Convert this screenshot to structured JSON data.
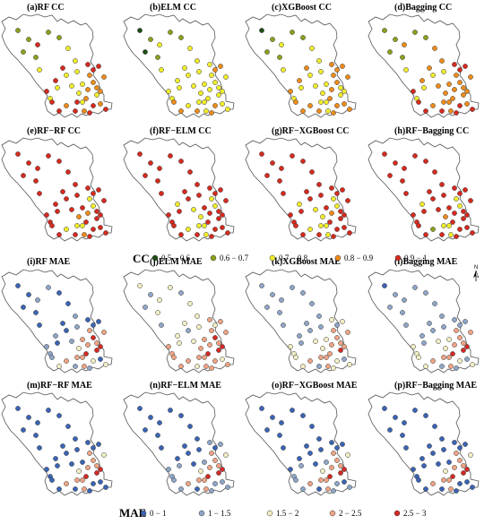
{
  "panels": [
    {
      "title": "(a)RF CC",
      "legend": "cc",
      "dots": [
        1,
        1,
        1,
        1,
        2,
        1,
        1,
        2,
        2,
        2,
        2,
        2,
        2,
        2,
        2,
        3,
        3,
        3,
        2,
        3,
        2,
        2,
        3,
        4,
        4,
        3,
        4,
        4,
        3,
        4,
        3,
        4,
        4,
        4,
        4,
        4,
        4,
        4,
        3,
        4,
        3,
        4
      ]
    },
    {
      "title": "(b)ELM CC",
      "legend": "cc",
      "dots": [
        0,
        1,
        0,
        1,
        2,
        1,
        1,
        2,
        2,
        2,
        2,
        2,
        2,
        2,
        2,
        2,
        2,
        2,
        2,
        2,
        2,
        2,
        2,
        3,
        3,
        2,
        2,
        3,
        2,
        3,
        2,
        3,
        3,
        2,
        2,
        2,
        3,
        2,
        2,
        2,
        2,
        2
      ]
    },
    {
      "title": "(c)XGBoost CC",
      "legend": "cc",
      "dots": [
        0,
        1,
        1,
        1,
        2,
        1,
        1,
        2,
        2,
        2,
        2,
        2,
        2,
        2,
        2,
        3,
        3,
        3,
        2,
        3,
        2,
        2,
        3,
        3,
        3,
        3,
        3,
        3,
        2,
        3,
        3,
        3,
        3,
        3,
        3,
        2,
        3,
        3,
        2,
        3,
        2,
        2
      ]
    },
    {
      "title": "(d)Bagging CC",
      "legend": "cc",
      "dots": [
        1,
        1,
        1,
        1,
        2,
        1,
        1,
        3,
        3,
        2,
        2,
        3,
        2,
        2,
        3,
        3,
        3,
        3,
        3,
        3,
        3,
        3,
        3,
        4,
        4,
        3,
        4,
        4,
        3,
        4,
        3,
        4,
        4,
        4,
        3,
        3,
        4,
        4,
        3,
        3,
        3,
        3
      ]
    },
    {
      "title": "(e)RF−RF CC",
      "legend": "cc",
      "dots": [
        4,
        4,
        4,
        4,
        4,
        4,
        4,
        4,
        4,
        4,
        4,
        4,
        4,
        4,
        4,
        2,
        2,
        3,
        4,
        4,
        3,
        2,
        4,
        4,
        4,
        4,
        4,
        4,
        3,
        4,
        2,
        4,
        4,
        4,
        4,
        2,
        4,
        4,
        4,
        4,
        4,
        4
      ]
    },
    {
      "title": "(f)RF−ELM CC",
      "legend": "cc",
      "dots": [
        4,
        4,
        4,
        4,
        4,
        4,
        4,
        4,
        4,
        4,
        4,
        2,
        4,
        4,
        4,
        2,
        2,
        4,
        4,
        4,
        2,
        2,
        4,
        4,
        4,
        4,
        4,
        4,
        2,
        4,
        2,
        4,
        4,
        4,
        4,
        2,
        4,
        4,
        4,
        2,
        4,
        4
      ]
    },
    {
      "title": "(g)RF−XGBoost CC",
      "legend": "cc",
      "dots": [
        4,
        4,
        4,
        4,
        4,
        4,
        4,
        4,
        4,
        4,
        4,
        2,
        4,
        4,
        4,
        2,
        2,
        3,
        4,
        4,
        2,
        2,
        4,
        4,
        4,
        4,
        4,
        4,
        2,
        4,
        2,
        4,
        4,
        4,
        4,
        2,
        4,
        4,
        4,
        2,
        4,
        4
      ]
    },
    {
      "title": "(h)RF−Bagging CC",
      "legend": "cc",
      "dots": [
        4,
        4,
        4,
        4,
        4,
        4,
        4,
        4,
        4,
        4,
        4,
        4,
        4,
        4,
        4,
        2,
        2,
        4,
        4,
        4,
        3,
        2,
        4,
        4,
        4,
        4,
        4,
        4,
        2,
        4,
        1,
        4,
        4,
        4,
        4,
        2,
        4,
        4,
        4,
        2,
        4,
        4
      ]
    },
    {
      "title": "(i)RF MAE",
      "legend": "mae",
      "dots": [
        0,
        0,
        0,
        0,
        0,
        1,
        0,
        0,
        1,
        0,
        0,
        1,
        1,
        1,
        3,
        3,
        4,
        3,
        4,
        4,
        2,
        3,
        0,
        2,
        0,
        3,
        0,
        0,
        3,
        1,
        3,
        2,
        1,
        1,
        0,
        3,
        1,
        2,
        3,
        1,
        4,
        1
      ]
    },
    {
      "title": "(j)ELM MAE",
      "legend": "mae",
      "dots": [
        2,
        1,
        1,
        2,
        1,
        2,
        1,
        2,
        2,
        1,
        2,
        2,
        3,
        2,
        3,
        3,
        4,
        3,
        4,
        4,
        3,
        3,
        2,
        3,
        3,
        3,
        3,
        2,
        3,
        2,
        3,
        3,
        3,
        3,
        2,
        3,
        3,
        3,
        3,
        2,
        4,
        2
      ]
    },
    {
      "title": "(k)XGBoost MAE",
      "legend": "mae",
      "dots": [
        1,
        1,
        1,
        1,
        1,
        1,
        1,
        1,
        1,
        1,
        1,
        2,
        2,
        1,
        2,
        3,
        3,
        3,
        4,
        3,
        2,
        3,
        1,
        2,
        2,
        3,
        2,
        1,
        3,
        1,
        3,
        2,
        2,
        2,
        1,
        3,
        2,
        2,
        3,
        1,
        3,
        1
      ]
    },
    {
      "title": "(l)Bagging MAE",
      "legend": "mae",
      "dots": [
        0,
        1,
        1,
        1,
        1,
        1,
        1,
        1,
        1,
        1,
        1,
        2,
        2,
        1,
        2,
        3,
        3,
        3,
        4,
        4,
        2,
        3,
        1,
        2,
        1,
        3,
        1,
        1,
        3,
        1,
        3,
        2,
        2,
        2,
        1,
        3,
        1,
        2,
        3,
        1,
        4,
        1
      ]
    },
    {
      "title": "(m)RF−RF MAE",
      "legend": "mae",
      "dots": [
        0,
        0,
        0,
        0,
        0,
        0,
        0,
        0,
        0,
        0,
        0,
        0,
        0,
        0,
        0,
        3,
        3,
        3,
        4,
        4,
        2,
        3,
        0,
        0,
        0,
        2,
        0,
        0,
        3,
        0,
        3,
        0,
        0,
        0,
        0,
        3,
        0,
        0,
        3,
        0,
        4,
        0
      ]
    },
    {
      "title": "(n)RF−ELM MAE",
      "legend": "mae",
      "dots": [
        0,
        0,
        0,
        0,
        0,
        0,
        0,
        0,
        0,
        0,
        1,
        0,
        1,
        0,
        1,
        3,
        3,
        3,
        4,
        4,
        2,
        3,
        1,
        1,
        1,
        2,
        1,
        0,
        3,
        0,
        3,
        1,
        1,
        1,
        0,
        3,
        1,
        1,
        3,
        0,
        4,
        0
      ]
    },
    {
      "title": "(o)RF−XGBoost MAE",
      "legend": "mae",
      "dots": [
        0,
        0,
        0,
        0,
        0,
        0,
        0,
        0,
        0,
        0,
        1,
        0,
        1,
        0,
        1,
        3,
        3,
        3,
        4,
        4,
        2,
        3,
        0,
        1,
        0,
        2,
        0,
        0,
        3,
        0,
        3,
        1,
        1,
        0,
        0,
        3,
        1,
        1,
        3,
        0,
        4,
        0
      ]
    },
    {
      "title": "(p)RF−Bagging MAE",
      "legend": "mae",
      "dots": [
        0,
        0,
        0,
        0,
        0,
        0,
        0,
        0,
        0,
        0,
        0,
        0,
        0,
        0,
        0,
        3,
        3,
        3,
        4,
        4,
        2,
        3,
        0,
        0,
        0,
        2,
        0,
        0,
        3,
        0,
        3,
        0,
        0,
        0,
        0,
        3,
        0,
        0,
        3,
        0,
        4,
        0
      ]
    }
  ],
  "legends": {
    "cc": {
      "title": "CC",
      "items": [
        {
          "label": "0.5 − 0.6",
          "color": "#1f4d14"
        },
        {
          "label": "0.6 − 0.7",
          "color": "#8aa11b"
        },
        {
          "label": "0.7 − 0.8",
          "color": "#f1ee2a"
        },
        {
          "label": "0.8 − 0.9",
          "color": "#ef8c1a"
        },
        {
          "label": "0.9 − 1",
          "color": "#d62a1f"
        }
      ]
    },
    "mae": {
      "title": "MAE",
      "items": [
        {
          "label": "0 − 1",
          "color": "#3a64b4"
        },
        {
          "label": "1 − 1.5",
          "color": "#8ea6c8"
        },
        {
          "label": "1.5 − 2",
          "color": "#f2efc4"
        },
        {
          "label": "2 − 2.5",
          "color": "#f0a484"
        },
        {
          "label": "2.5 − 3",
          "color": "#d42a26"
        }
      ]
    }
  },
  "north_label": "N",
  "icons": {
    "north": "north-arrow-icon"
  }
}
